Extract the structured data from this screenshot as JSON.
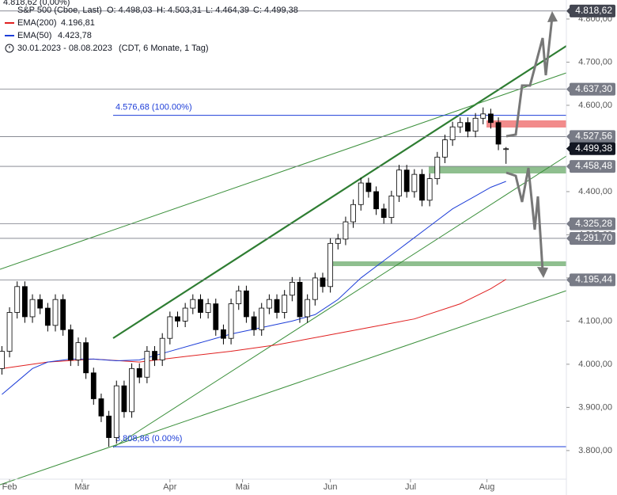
{
  "chart_data": {
    "type": "candlestick",
    "top_text": "4.818,62 (0,00%)",
    "title": "S&P 500 (Cboe, Last)",
    "ohlc_text": [
      "O: 4.498,03",
      "H: 4.503,31",
      "L: 4.464,39",
      "C: 4.499,38"
    ],
    "range_text": "30.01.2023 - 08.08.2023",
    "range_note": "(CDT, 6 Monate, 1 Tag)",
    "xlim": [
      -2.5,
      145.8
    ],
    "ylim": [
      3697,
      4844
    ],
    "xticks": [
      {
        "value": 0,
        "label": "Feb"
      },
      {
        "value": 19,
        "label": "Mär"
      },
      {
        "value": 42,
        "label": "Apr"
      },
      {
        "value": 61,
        "label": "Mai"
      },
      {
        "value": 84,
        "label": "Jun"
      },
      {
        "value": 105,
        "label": "Jul"
      },
      {
        "value": 125,
        "label": "Aug"
      }
    ],
    "yticks": [
      {
        "value": 3800,
        "label": "3.800,00"
      },
      {
        "value": 3900,
        "label": "3.900,00"
      },
      {
        "value": 4000,
        "label": "4.000,00"
      },
      {
        "value": 4100,
        "label": "4.100,00"
      },
      {
        "value": 4200,
        "label": "4.200,00"
      },
      {
        "value": 4300,
        "label": "4.300,00"
      },
      {
        "value": 4400,
        "label": "4.400,00"
      },
      {
        "value": 4500,
        "label": "4.500,00"
      },
      {
        "value": 4600,
        "label": "4.600,00"
      },
      {
        "value": 4700,
        "label": "4.700,00"
      },
      {
        "value": 4800,
        "label": "4.800,00"
      }
    ],
    "up_color": "#ffffff",
    "down_color": "#000000",
    "candles": [
      [
        -2,
        3990,
        4042,
        3976,
        4030
      ],
      [
        0,
        4030,
        4132,
        4016,
        4120
      ],
      [
        2,
        4120,
        4192,
        4106,
        4180
      ],
      [
        4,
        4180,
        4192,
        4096,
        4110
      ],
      [
        6,
        4110,
        4162,
        4096,
        4150
      ],
      [
        8,
        4150,
        4162,
        4116,
        4130
      ],
      [
        10,
        4130,
        4142,
        4076,
        4090
      ],
      [
        12,
        4090,
        4162,
        4076,
        4150
      ],
      [
        14,
        4150,
        4162,
        4066,
        4080
      ],
      [
        16,
        4080,
        4092,
        3996,
        4010
      ],
      [
        18,
        4010,
        4062,
        3996,
        4050
      ],
      [
        20,
        4050,
        4062,
        3966,
        3980
      ],
      [
        22,
        3980,
        3992,
        3906,
        3920
      ],
      [
        24,
        3920,
        3932,
        3866,
        3880
      ],
      [
        26,
        3880,
        3892,
        3809,
        3830
      ],
      [
        28,
        3830,
        3962,
        3816,
        3950
      ],
      [
        30,
        3950,
        3962,
        3876,
        3890
      ],
      [
        32,
        3890,
        4002,
        3876,
        3990
      ],
      [
        34,
        3990,
        4002,
        3956,
        3970
      ],
      [
        36,
        3970,
        4042,
        3956,
        4030
      ],
      [
        38,
        4030,
        4042,
        3996,
        4010
      ],
      [
        40,
        4010,
        4072,
        3996,
        4060
      ],
      [
        42,
        4060,
        4122,
        4046,
        4110
      ],
      [
        44,
        4110,
        4122,
        4086,
        4100
      ],
      [
        46,
        4100,
        4142,
        4086,
        4130
      ],
      [
        48,
        4130,
        4162,
        4116,
        4150
      ],
      [
        50,
        4150,
        4162,
        4106,
        4120
      ],
      [
        52,
        4120,
        4152,
        4106,
        4140
      ],
      [
        54,
        4140,
        4152,
        4066,
        4080
      ],
      [
        56,
        4080,
        4092,
        4046,
        4060
      ],
      [
        58,
        4060,
        4152,
        4046,
        4140
      ],
      [
        60,
        4140,
        4182,
        4126,
        4170
      ],
      [
        62,
        4170,
        4182,
        4096,
        4110
      ],
      [
        64,
        4110,
        4122,
        4066,
        4080
      ],
      [
        66,
        4080,
        4142,
        4066,
        4130
      ],
      [
        68,
        4130,
        4162,
        4116,
        4150
      ],
      [
        70,
        4150,
        4162,
        4106,
        4120
      ],
      [
        72,
        4120,
        4172,
        4106,
        4160
      ],
      [
        74,
        4160,
        4202,
        4146,
        4190
      ],
      [
        76,
        4190,
        4202,
        4096,
        4110
      ],
      [
        78,
        4110,
        4162,
        4096,
        4150
      ],
      [
        80,
        4150,
        4212,
        4136,
        4200
      ],
      [
        82,
        4200,
        4212,
        4166,
        4180
      ],
      [
        84,
        4180,
        4292,
        4166,
        4280
      ],
      [
        86,
        4280,
        4302,
        4266,
        4290
      ],
      [
        88,
        4290,
        4342,
        4276,
        4330
      ],
      [
        90,
        4330,
        4382,
        4316,
        4370
      ],
      [
        92,
        4370,
        4432,
        4356,
        4420
      ],
      [
        94,
        4420,
        4432,
        4386,
        4400
      ],
      [
        96,
        4400,
        4412,
        4346,
        4360
      ],
      [
        98,
        4360,
        4372,
        4326,
        4340
      ],
      [
        100,
        4340,
        4402,
        4326,
        4390
      ],
      [
        102,
        4390,
        4462,
        4376,
        4450
      ],
      [
        104,
        4450,
        4462,
        4386,
        4400
      ],
      [
        106,
        4400,
        4452,
        4386,
        4440
      ],
      [
        108,
        4440,
        4452,
        4366,
        4380
      ],
      [
        110,
        4380,
        4442,
        4366,
        4430
      ],
      [
        112,
        4430,
        4492,
        4416,
        4480
      ],
      [
        114,
        4480,
        4532,
        4466,
        4520
      ],
      [
        116,
        4520,
        4562,
        4506,
        4550
      ],
      [
        118,
        4550,
        4572,
        4536,
        4560
      ],
      [
        120,
        4560,
        4572,
        4526,
        4540
      ],
      [
        122,
        4540,
        4582,
        4526,
        4570
      ],
      [
        124,
        4570,
        4595,
        4556,
        4580
      ],
      [
        126,
        4580,
        4592,
        4546,
        4560
      ],
      [
        128,
        4560,
        4572,
        4496,
        4510
      ],
      [
        130,
        4498.03,
        4503.31,
        4464.39,
        4499.38
      ]
    ],
    "series": [
      {
        "name": "EMA(200)",
        "value_text": "4.196,81",
        "color": "#e02020",
        "x": [
          -2,
          10,
          22,
          34,
          46,
          58,
          70,
          82,
          94,
          106,
          118,
          126,
          130
        ],
        "values": [
          3990,
          4005,
          4012,
          4005,
          4018,
          4030,
          4045,
          4065,
          4085,
          4105,
          4140,
          4175,
          4196.81
        ]
      },
      {
        "name": "EMA(50)",
        "value_text": "4.423,78",
        "color": "#1e3ed8",
        "x": [
          -2,
          2,
          6,
          10,
          16,
          22,
          28,
          34,
          42,
          50,
          58,
          66,
          74,
          80,
          86,
          92,
          98,
          104,
          110,
          116,
          122,
          126,
          130
        ],
        "values": [
          3930,
          3960,
          3990,
          4005,
          4012,
          4012,
          4008,
          4010,
          4030,
          4050,
          4070,
          4085,
          4100,
          4115,
          4150,
          4200,
          4240,
          4280,
          4320,
          4360,
          4390,
          4410,
          4423.78
        ]
      }
    ],
    "levels": [
      {
        "value": 4818.62,
        "label": "4.818,62",
        "color": "#434651",
        "line": true
      },
      {
        "value": 4637.3,
        "label": "4.637,30",
        "color": "#787b86",
        "line": true
      },
      {
        "value": 4527.56,
        "label": "4.527,56",
        "color": "#787b86",
        "line": true
      },
      {
        "value": 4499.38,
        "label": "4.499,38",
        "color": "#131722",
        "line": false
      },
      {
        "value": 4458.48,
        "label": "4.458,48",
        "color": "#787b86",
        "line": true
      },
      {
        "value": 4325.28,
        "label": "4.325,28",
        "color": "#787b86",
        "line": true
      },
      {
        "value": 4291.7,
        "label": "4.291,70",
        "color": "#787b86",
        "line": true
      },
      {
        "value": 4195.44,
        "label": "4.195,44",
        "color": "#787b86",
        "line": true
      }
    ],
    "fib": [
      {
        "value": 4576.68,
        "label": "4.576,68 (100.00%)"
      },
      {
        "value": 3808.86,
        "label": "3.808,86 (0.00%)"
      }
    ],
    "fib_color": "#1e3ed8"
  }
}
